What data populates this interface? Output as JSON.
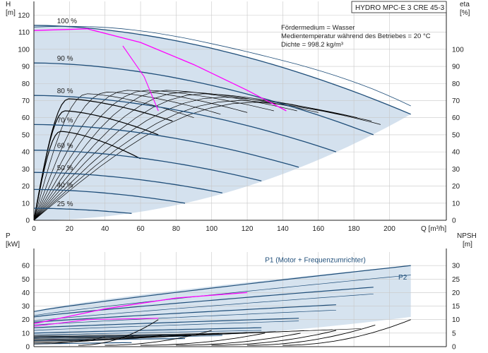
{
  "title": "HYDRO MPC-E 3 CRE 45-3",
  "medium": {
    "fluid": "Fördermedium = Wasser",
    "temp": "Medientemperatur während des Betriebes = 20 °C",
    "density": "Dichte = 998.2 kg/m³"
  },
  "colors": {
    "curve": "#1f4e79",
    "duty": "#ff00ff",
    "shade": "#c5d7e8",
    "family": "#000000",
    "axis": "#222222"
  },
  "chart_data": [
    {
      "type": "line",
      "name": "top",
      "ylabel": "H",
      "yunit": "[m]",
      "y2label": "eta",
      "y2unit": "[%]",
      "xunit": "Q [m³/h]",
      "xlim": [
        0,
        232
      ],
      "ylim": [
        0,
        128
      ],
      "xticks": [
        "0",
        "20",
        "40",
        "60",
        "80",
        "100",
        "120",
        "140",
        "160",
        "180",
        "200"
      ],
      "yticks": [
        "0",
        "10",
        "20",
        "30",
        "40",
        "50",
        "60",
        "70",
        "80",
        "90",
        "100",
        "110",
        "120"
      ],
      "y2ticks": [
        "0",
        "10",
        "20",
        "30",
        "40",
        "50",
        "60",
        "70",
        "80",
        "90",
        "100"
      ],
      "speed_labels": [
        {
          "text": "100 %",
          "x": 13,
          "y": 114
        },
        {
          "text": "90 %",
          "x": 13,
          "y": 92
        },
        {
          "text": "80 %",
          "x": 13,
          "y": 73
        },
        {
          "text": "70 %",
          "x": 13,
          "y": 56
        },
        {
          "text": "60 %",
          "x": 13,
          "y": 41
        },
        {
          "text": "50 %",
          "x": 13,
          "y": 28
        },
        {
          "text": "40 %",
          "x": 13,
          "y": 18
        },
        {
          "text": "25 %",
          "x": 13,
          "y": 7
        }
      ],
      "speed_curves": [
        {
          "h0": 114,
          "qmax": 212,
          "hend": 62
        },
        {
          "h0": 92,
          "qmax": 191,
          "hend": 50
        },
        {
          "h0": 73,
          "qmax": 170,
          "hend": 40
        },
        {
          "h0": 56,
          "qmax": 149,
          "hend": 31
        },
        {
          "h0": 41,
          "qmax": 128,
          "hend": 23
        },
        {
          "h0": 28,
          "qmax": 106,
          "hend": 16
        },
        {
          "h0": 18,
          "qmax": 85,
          "hend": 10
        },
        {
          "h0": 7,
          "qmax": 55,
          "hend": 4
        }
      ],
      "max_curve": [
        [
          0,
          113
        ],
        [
          40,
          114
        ],
        [
          80,
          112
        ],
        [
          120,
          104
        ],
        [
          160,
          90
        ],
        [
          190,
          77
        ],
        [
          212,
          66
        ]
      ],
      "duty_curve_1": [
        [
          0,
          111
        ],
        [
          30,
          112
        ],
        [
          60,
          104
        ],
        [
          90,
          91
        ],
        [
          120,
          76
        ],
        [
          142,
          64
        ]
      ],
      "duty_curve_2": [
        [
          50,
          102
        ],
        [
          62,
          84
        ],
        [
          70,
          64
        ]
      ],
      "family": [
        {
          "x0": 0,
          "h0": 52,
          "qmax": 60,
          "hend": 36
        },
        {
          "x0": 0,
          "h0": 64,
          "qmax": 70,
          "hend": 50
        },
        {
          "x0": 0,
          "h0": 71,
          "qmax": 78,
          "hend": 58
        },
        {
          "x0": 10,
          "h0": 74,
          "qmax": 90,
          "hend": 60
        },
        {
          "x0": 20,
          "h0": 75,
          "qmax": 105,
          "hend": 62
        },
        {
          "x0": 30,
          "h0": 76,
          "qmax": 120,
          "hend": 63
        },
        {
          "x0": 40,
          "h0": 76,
          "qmax": 135,
          "hend": 64
        },
        {
          "x0": 50,
          "h0": 76,
          "qmax": 148,
          "hend": 64
        },
        {
          "x0": 60,
          "h0": 75,
          "qmax": 160,
          "hend": 63
        },
        {
          "x0": 70,
          "h0": 74,
          "qmax": 172,
          "hend": 62
        },
        {
          "x0": 80,
          "h0": 72,
          "qmax": 182,
          "hend": 60
        },
        {
          "x0": 90,
          "h0": 70,
          "qmax": 190,
          "hend": 58
        },
        {
          "x0": 100,
          "h0": 69,
          "qmax": 195,
          "hend": 56
        }
      ]
    },
    {
      "type": "line",
      "name": "bottom",
      "ylabel": "P",
      "yunit": "[kW]",
      "y2label": "NPSH",
      "y2unit": "[m]",
      "xlim": [
        0,
        232
      ],
      "ylim": [
        0,
        70
      ],
      "yticks": [
        "0",
        "10",
        "20",
        "30",
        "40",
        "50",
        "60"
      ],
      "y2ticks": [
        "0",
        "5",
        "10",
        "15",
        "20",
        "25",
        "30"
      ],
      "series_labels": [
        {
          "text": "P1 (Motor + Frequenzumrichter)",
          "x": 130,
          "y": 62.5
        },
        {
          "text": "P2",
          "x": 205,
          "y": 49.5
        }
      ],
      "p1_curves": [
        {
          "p0": 26,
          "qmax": 212,
          "pend": 60
        },
        {
          "p0": 22,
          "qmax": 191,
          "pend": 44
        },
        {
          "p0": 18,
          "qmax": 170,
          "pend": 31
        },
        {
          "p0": 14,
          "qmax": 149,
          "pend": 21
        },
        {
          "p0": 10,
          "qmax": 128,
          "pend": 14
        },
        {
          "p0": 7,
          "qmax": 106,
          "pend": 9
        },
        {
          "p0": 4.5,
          "qmax": 85,
          "pend": 6
        },
        {
          "p0": 2,
          "qmax": 55,
          "pend": 3
        }
      ],
      "p2_curves": [
        {
          "p0": 23,
          "qmax": 212,
          "pend": 53
        },
        {
          "p0": 19,
          "qmax": 191,
          "pend": 39
        },
        {
          "p0": 16,
          "qmax": 170,
          "pend": 27
        },
        {
          "p0": 12,
          "qmax": 149,
          "pend": 19
        },
        {
          "p0": 8.5,
          "qmax": 128,
          "pend": 12
        },
        {
          "p0": 6,
          "qmax": 106,
          "pend": 8
        }
      ],
      "duty_p": [
        [
          0,
          17
        ],
        [
          40,
          28
        ],
        [
          80,
          36
        ],
        [
          120,
          40
        ]
      ],
      "duty_p2": [
        [
          0,
          15
        ],
        [
          30,
          20
        ],
        [
          70,
          21
        ]
      ],
      "npsh": [
        {
          "q0": 25,
          "qmax": 70,
          "n0": 0.5,
          "nend": 10
        },
        {
          "q0": 40,
          "qmax": 100,
          "n0": 0.5,
          "nend": 6
        },
        {
          "q0": 60,
          "qmax": 130,
          "n0": 0.5,
          "nend": 5
        },
        {
          "q0": 80,
          "qmax": 150,
          "n0": 0.5,
          "nend": 5
        },
        {
          "q0": 100,
          "qmax": 170,
          "n0": 0.5,
          "nend": 6
        },
        {
          "q0": 120,
          "qmax": 192,
          "n0": 0.5,
          "nend": 8
        },
        {
          "q0": 140,
          "qmax": 212,
          "n0": 0.5,
          "nend": 10
        }
      ]
    }
  ]
}
